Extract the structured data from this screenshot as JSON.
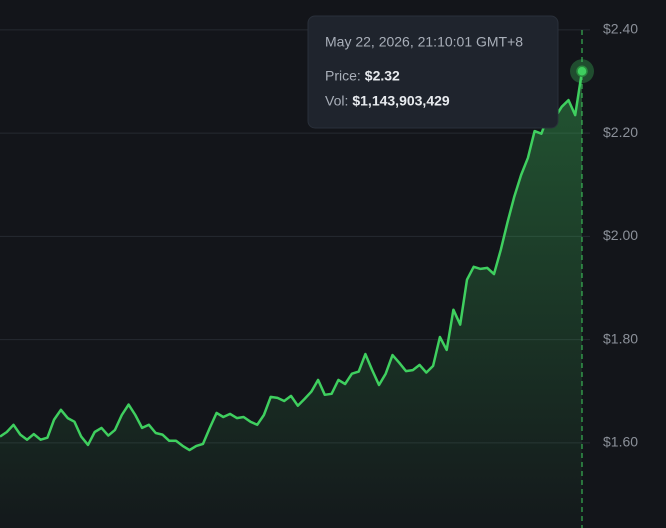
{
  "chart_data": {
    "type": "line",
    "values": [
      1.612,
      1.621,
      1.635,
      1.616,
      1.606,
      1.617,
      1.606,
      1.61,
      1.645,
      1.664,
      1.648,
      1.641,
      1.612,
      1.596,
      1.621,
      1.629,
      1.614,
      1.625,
      1.654,
      1.674,
      1.654,
      1.629,
      1.635,
      1.619,
      1.616,
      1.604,
      1.604,
      1.594,
      1.586,
      1.594,
      1.598,
      1.629,
      1.658,
      1.65,
      1.656,
      1.648,
      1.65,
      1.641,
      1.635,
      1.654,
      1.689,
      1.687,
      1.681,
      1.691,
      1.672,
      1.685,
      1.699,
      1.722,
      1.693,
      1.695,
      1.722,
      1.714,
      1.734,
      1.738,
      1.772,
      1.741,
      1.712,
      1.734,
      1.77,
      1.755,
      1.739,
      1.741,
      1.751,
      1.736,
      1.749,
      1.805,
      1.78,
      1.858,
      1.829,
      1.916,
      1.941,
      1.937,
      1.939,
      1.927,
      1.974,
      2.028,
      2.077,
      2.119,
      2.152,
      2.204,
      2.199,
      2.235,
      2.23,
      2.251,
      2.264,
      2.235,
      2.32
    ],
    "color": "#3fcf5f",
    "ylim": [
      1.435,
      2.458
    ],
    "yticks": [
      {
        "value": 1.6,
        "label": "$1.60"
      },
      {
        "value": 1.8,
        "label": "$1.80"
      },
      {
        "value": 2.0,
        "label": "$2.00"
      },
      {
        "value": 2.2,
        "label": "$2.20"
      },
      {
        "value": 2.4,
        "label": "$2.40"
      }
    ],
    "grid": true,
    "tooltip": {
      "title": "May 22, 2026, 21:10:01 GMT+8",
      "rows": [
        {
          "label": "Price:",
          "value": "$2.32"
        },
        {
          "label": "Vol:",
          "value": "$1,143,903,429"
        }
      ]
    }
  }
}
